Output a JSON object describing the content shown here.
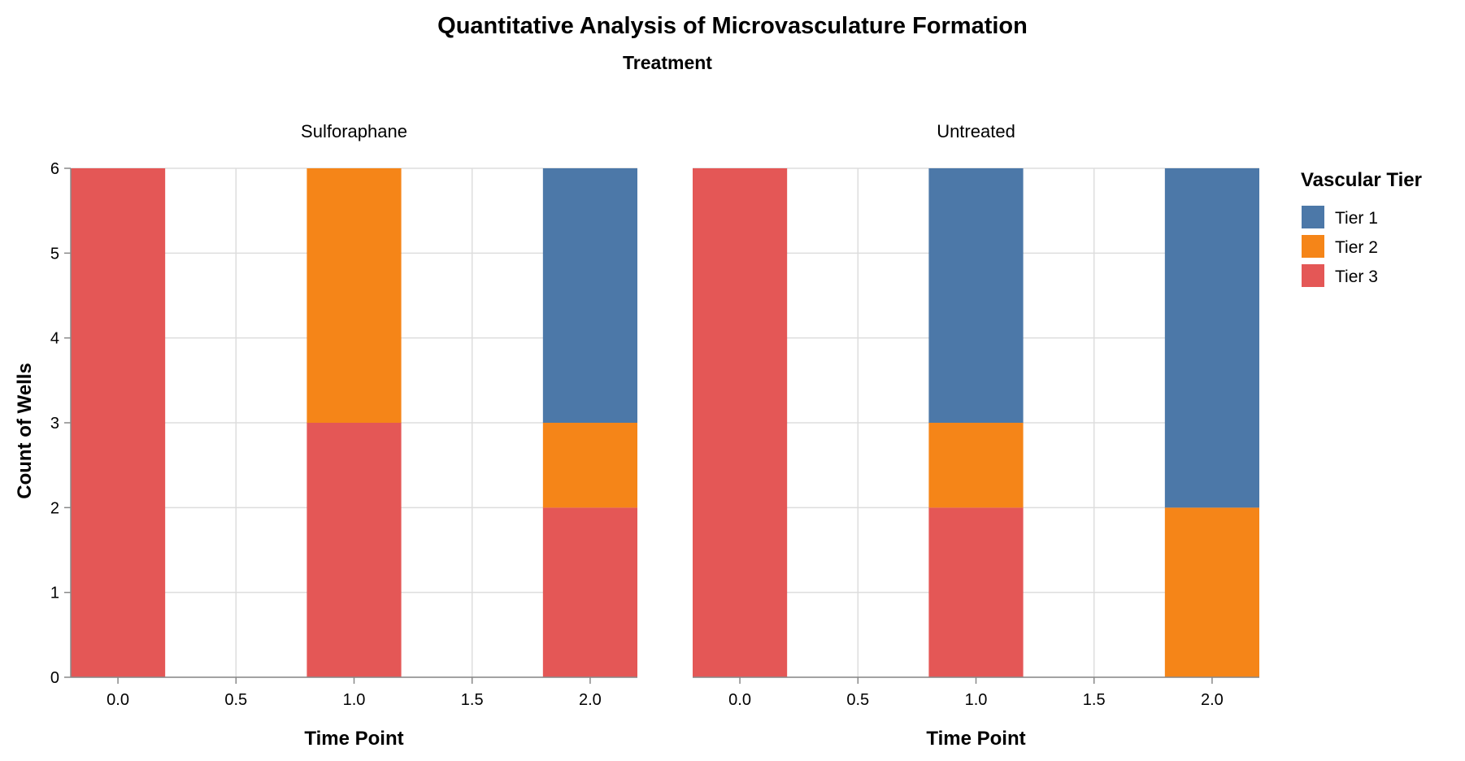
{
  "chart_data": {
    "type": "bar",
    "title": "Quantitative Analysis of Microvasculature Formation",
    "facet_field": "Treatment",
    "xlabel": "Time Point",
    "ylabel": "Count of Wells",
    "xlim": [
      -0.2,
      2.2
    ],
    "ylim": [
      0,
      6
    ],
    "x_ticks": [
      "0.0",
      "0.5",
      "1.0",
      "1.5",
      "2.0"
    ],
    "y_ticks": [
      "0",
      "1",
      "2",
      "3",
      "4",
      "5",
      "6"
    ],
    "bar_width": 0.4,
    "legend": {
      "title": "Vascular Tier",
      "placement": "right",
      "entries": [
        {
          "name": "Tier 1",
          "color": "#4c78a8"
        },
        {
          "name": "Tier 2",
          "color": "#f58518"
        },
        {
          "name": "Tier 3",
          "color": "#e45756"
        }
      ]
    },
    "stack_order": [
      "Tier 3",
      "Tier 2",
      "Tier 1"
    ],
    "facets": [
      {
        "name": "Sulforaphane",
        "stacks": [
          {
            "x": 0,
            "Tier 1": 0,
            "Tier 2": 0,
            "Tier 3": 6
          },
          {
            "x": 1,
            "Tier 1": 0,
            "Tier 2": 3,
            "Tier 3": 3
          },
          {
            "x": 2,
            "Tier 1": 3,
            "Tier 2": 1,
            "Tier 3": 2
          }
        ]
      },
      {
        "name": "Untreated",
        "stacks": [
          {
            "x": 0,
            "Tier 1": 0,
            "Tier 2": 0,
            "Tier 3": 6
          },
          {
            "x": 1,
            "Tier 1": 3,
            "Tier 2": 1,
            "Tier 3": 2
          },
          {
            "x": 2,
            "Tier 1": 4,
            "Tier 2": 2,
            "Tier 3": 0
          }
        ]
      }
    ]
  }
}
